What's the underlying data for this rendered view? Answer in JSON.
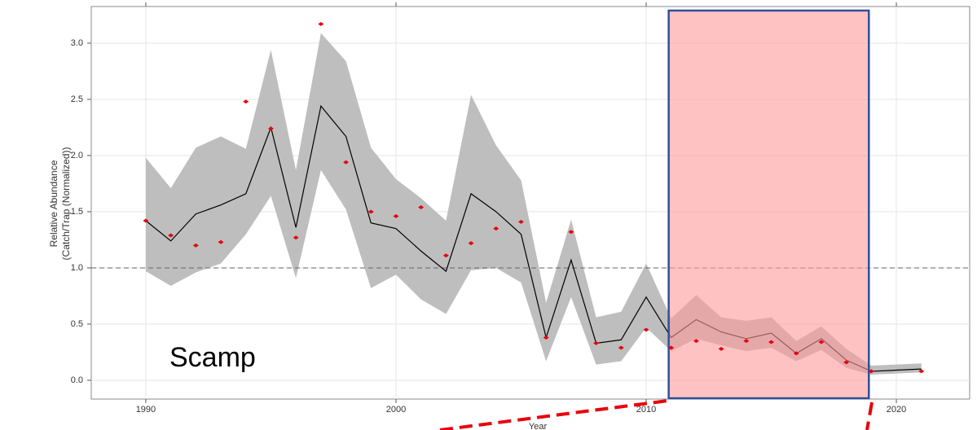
{
  "chart_data": {
    "type": "line",
    "xlabel": "Year",
    "ylabel": [
      "Relative Abundance",
      "(Catch/Trap (Normalized))"
    ],
    "annotation": "Scamp",
    "x": [
      1990,
      1991,
      1992,
      1993,
      1994,
      1995,
      1996,
      1997,
      1998,
      1999,
      2000,
      2001,
      2002,
      2003,
      2004,
      2005,
      2006,
      2007,
      2008,
      2009,
      2010,
      2011,
      2012,
      2013,
      2014,
      2015,
      2016,
      2017,
      2018,
      2019,
      2020,
      2021
    ],
    "values": [
      1.42,
      1.24,
      1.48,
      1.56,
      1.66,
      2.25,
      1.36,
      2.44,
      2.17,
      1.4,
      1.35,
      1.15,
      0.97,
      1.66,
      1.5,
      1.3,
      0.38,
      1.07,
      0.33,
      0.36,
      0.74,
      0.38,
      0.54,
      0.43,
      0.37,
      0.42,
      0.24,
      0.37,
      0.18,
      0.08,
      0.09,
      0.1
    ],
    "lower": [
      0.97,
      0.84,
      0.96,
      1.04,
      1.3,
      1.64,
      0.91,
      1.87,
      1.52,
      0.82,
      0.94,
      0.72,
      0.59,
      0.98,
      1.0,
      0.87,
      0.17,
      0.74,
      0.14,
      0.17,
      0.47,
      0.26,
      0.37,
      0.31,
      0.26,
      0.29,
      0.17,
      0.27,
      0.11,
      0.05,
      0.06,
      0.07
    ],
    "upper": [
      1.98,
      1.71,
      2.07,
      2.17,
      2.06,
      2.94,
      1.87,
      3.09,
      2.84,
      2.07,
      1.79,
      1.62,
      1.42,
      2.54,
      2.09,
      1.78,
      0.69,
      1.43,
      0.56,
      0.61,
      1.04,
      0.55,
      0.76,
      0.56,
      0.53,
      0.56,
      0.35,
      0.48,
      0.28,
      0.13,
      0.14,
      0.15
    ],
    "observed": [
      1.42,
      1.29,
      1.2,
      1.23,
      2.48,
      2.24,
      1.27,
      3.17,
      1.94,
      1.5,
      1.46,
      1.54,
      1.11,
      1.22,
      1.35,
      1.41,
      0.38,
      1.32,
      0.33,
      0.29,
      0.45,
      0.29,
      0.35,
      0.28,
      0.35,
      0.34,
      0.24,
      0.34,
      0.16,
      0.08,
      null,
      0.08
    ],
    "color": "#000000",
    "band_color": "#bebebe",
    "point_color": "#e8000b",
    "reference_line": 1.0,
    "highlight": {
      "xrange": [
        2010.9,
        2018.9
      ],
      "yrange": [
        -0.16,
        3.29
      ],
      "fill": "#ff9999",
      "stroke": "#2f4f9a"
    },
    "xlim": [
      1987.82,
      2022.93
    ],
    "ylim": [
      -0.167,
      3.326
    ],
    "xticks": [
      1990,
      2000,
      2010,
      2020
    ],
    "yticks": [
      {
        "value": 0,
        "label": "0.0"
      },
      0.5,
      {
        "value": 1,
        "label": "1.0"
      },
      1.5,
      {
        "value": 2,
        "label": "2.0"
      },
      2.5,
      {
        "value": 3,
        "label": "3.0"
      }
    ],
    "grid": true
  }
}
